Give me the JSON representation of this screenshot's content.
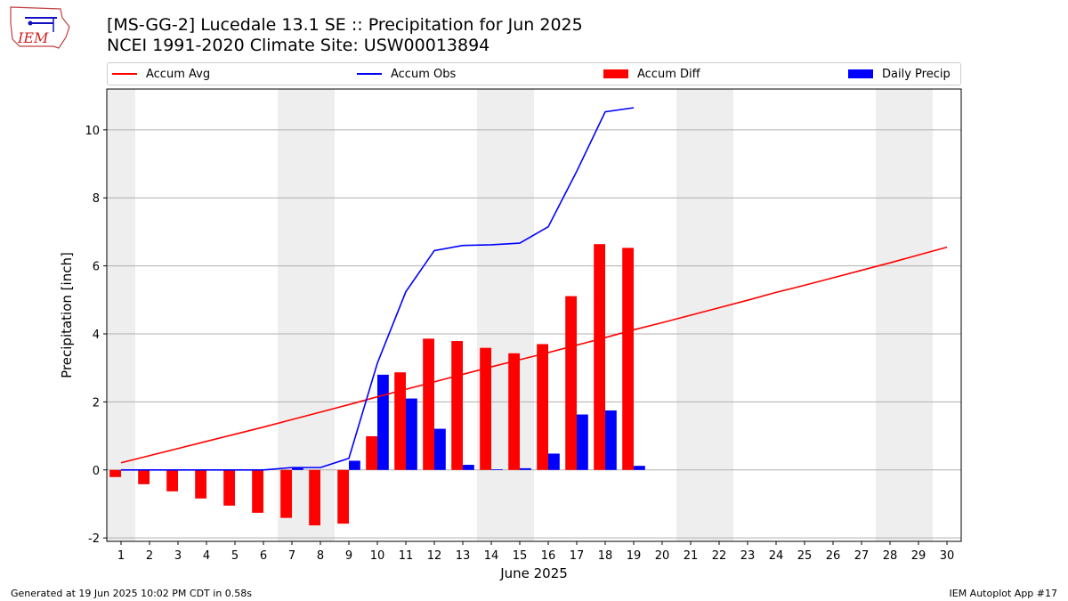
{
  "header": {
    "title": "[MS-GG-2] Lucedale 13.1 SE :: Precipitation for Jun 2025",
    "subtitle": "NCEI 1991-2020 Climate Site: USW00013894"
  },
  "logo": {
    "text": "IEM"
  },
  "footer": {
    "generated": "Generated at 19 Jun 2025 10:02 PM CDT in 0.58s",
    "app": "IEM Autoplot App #17"
  },
  "colors": {
    "avg": "#ff0000",
    "obs": "#0000ff",
    "diff": "#ff0000",
    "daily": "#0000ff",
    "weekend": "#eeeeee",
    "grid": "#b0b0b0"
  },
  "chart_data": {
    "type": "bar",
    "xlabel": "June 2025",
    "ylabel": "Precipitation [inch]",
    "xlim": [
      0.5,
      30.5
    ],
    "ylim": [
      -2.1,
      11.2
    ],
    "yticks": [
      -2,
      0,
      2,
      4,
      6,
      8,
      10
    ],
    "x": [
      1,
      2,
      3,
      4,
      5,
      6,
      7,
      8,
      9,
      10,
      11,
      12,
      13,
      14,
      15,
      16,
      17,
      18,
      19,
      20,
      21,
      22,
      23,
      24,
      25,
      26,
      27,
      28,
      29,
      30
    ],
    "weekend_days": [
      1,
      7,
      8,
      14,
      15,
      21,
      22,
      28,
      29
    ],
    "legend": [
      "Accum Avg",
      "Accum Obs",
      "Accum Diff",
      "Daily Precip"
    ],
    "legend_position": "top",
    "grid": "y",
    "series": [
      {
        "name": "Accum Avg",
        "kind": "line",
        "x": [
          1,
          2,
          3,
          4,
          5,
          6,
          7,
          8,
          9,
          10,
          11,
          12,
          13,
          14,
          15,
          16,
          17,
          18,
          19,
          20,
          21,
          22,
          23,
          24,
          25,
          26,
          27,
          28,
          29,
          30
        ],
        "values": [
          0.21,
          0.42,
          0.63,
          0.84,
          1.05,
          1.26,
          1.48,
          1.7,
          1.92,
          2.15,
          2.37,
          2.59,
          2.81,
          3.03,
          3.24,
          3.45,
          3.67,
          3.89,
          4.12,
          4.33,
          4.55,
          4.77,
          4.99,
          5.22,
          5.43,
          5.65,
          5.87,
          6.09,
          6.32,
          6.55
        ]
      },
      {
        "name": "Accum Obs",
        "kind": "line",
        "x": [
          1,
          2,
          3,
          4,
          5,
          6,
          7,
          8,
          9,
          10,
          11,
          12,
          13,
          14,
          15,
          16,
          17,
          18,
          19
        ],
        "values": [
          0.0,
          0.0,
          0.0,
          0.0,
          0.0,
          0.0,
          0.07,
          0.07,
          0.34,
          3.14,
          5.24,
          6.45,
          6.6,
          6.62,
          6.67,
          7.15,
          8.78,
          10.53,
          10.65
        ]
      },
      {
        "name": "Accum Diff",
        "kind": "bar",
        "x": [
          1,
          2,
          3,
          4,
          5,
          6,
          7,
          8,
          9,
          10,
          11,
          12,
          13,
          14,
          15,
          16,
          17,
          18,
          19
        ],
        "values": [
          -0.21,
          -0.42,
          -0.63,
          -0.84,
          -1.05,
          -1.26,
          -1.41,
          -1.63,
          -1.58,
          0.99,
          2.87,
          3.86,
          3.79,
          3.59,
          3.43,
          3.7,
          5.11,
          6.64,
          6.53
        ]
      },
      {
        "name": "Daily Precip",
        "kind": "bar",
        "x": [
          1,
          2,
          3,
          4,
          5,
          6,
          7,
          8,
          9,
          10,
          11,
          12,
          13,
          14,
          15,
          16,
          17,
          18,
          19
        ],
        "values": [
          0.0,
          0.0,
          0.0,
          0.0,
          0.0,
          0.0,
          0.07,
          0.0,
          0.27,
          2.8,
          2.1,
          1.21,
          0.15,
          0.02,
          0.05,
          0.48,
          1.63,
          1.75,
          0.12
        ]
      }
    ]
  }
}
